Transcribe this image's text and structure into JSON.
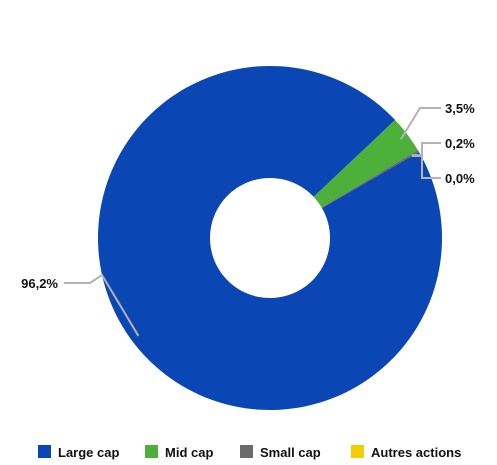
{
  "chart_data": {
    "type": "pie",
    "donut": true,
    "title": "",
    "slices": [
      {
        "name": "Large cap",
        "value": 96.2,
        "label": "96,2%",
        "color": "#0a47b5"
      },
      {
        "name": "Mid cap",
        "value": 3.5,
        "label": "3,5%",
        "color": "#4db03a"
      },
      {
        "name": "Small cap",
        "value": 0.2,
        "label": "0,2%",
        "color": "#6b6b6b"
      },
      {
        "name": "Autres actions",
        "value": 0.0,
        "label": "0,0%",
        "color": "#f2cd00"
      }
    ],
    "legend": {
      "position": "bottom",
      "entries": [
        "Large cap",
        "Mid cap",
        "Small cap",
        "Autres actions"
      ]
    },
    "leader_line_color": "#b3b3b3"
  }
}
